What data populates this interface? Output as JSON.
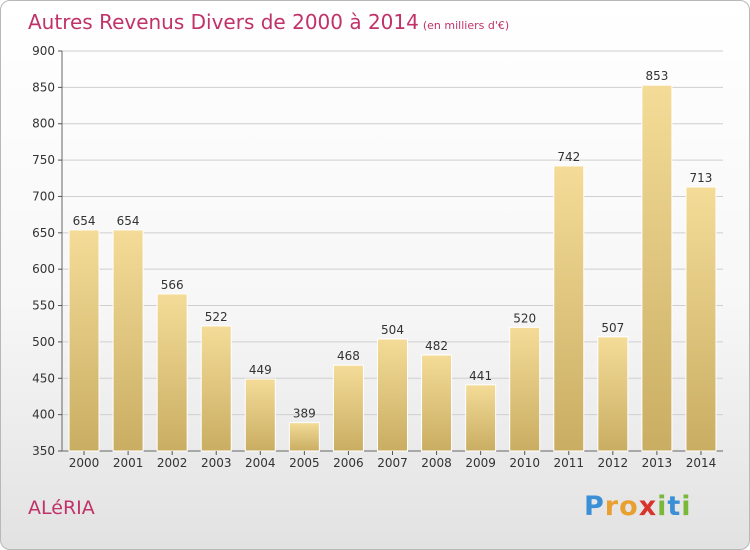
{
  "header": {
    "title": "Autres Revenus Divers de 2000 à 2014",
    "unit": "(en milliers d'€)"
  },
  "footer": {
    "commune": "ALéRIA",
    "logo_letters": [
      "P",
      "r",
      "o",
      "x",
      "i",
      "t",
      "i"
    ],
    "logo_colors": [
      "#3a8fd6",
      "#e9a030",
      "#e9a030",
      "#d8342c",
      "#79b83a",
      "#3a8fd6",
      "#79b83a"
    ]
  },
  "colors": {
    "title": "#c03268",
    "bar_light": "#f4dc98",
    "bar_dark": "#c9ad62",
    "grid": "#cfcfcf"
  },
  "chart_data": {
    "type": "bar",
    "title": "Autres Revenus Divers de 2000 à 2014",
    "subtitle": "(en milliers d'€)",
    "xlabel": "",
    "ylabel": "",
    "categories": [
      "2000",
      "2001",
      "2002",
      "2003",
      "2004",
      "2005",
      "2006",
      "2007",
      "2008",
      "2009",
      "2010",
      "2011",
      "2012",
      "2013",
      "2014"
    ],
    "values": [
      654,
      654,
      566,
      522,
      449,
      389,
      468,
      504,
      482,
      441,
      520,
      742,
      507,
      853,
      713
    ],
    "ylim": [
      350,
      900
    ],
    "yticks": [
      350,
      400,
      450,
      500,
      550,
      600,
      650,
      700,
      750,
      800,
      850,
      900
    ],
    "grid": true,
    "legend": "none"
  }
}
